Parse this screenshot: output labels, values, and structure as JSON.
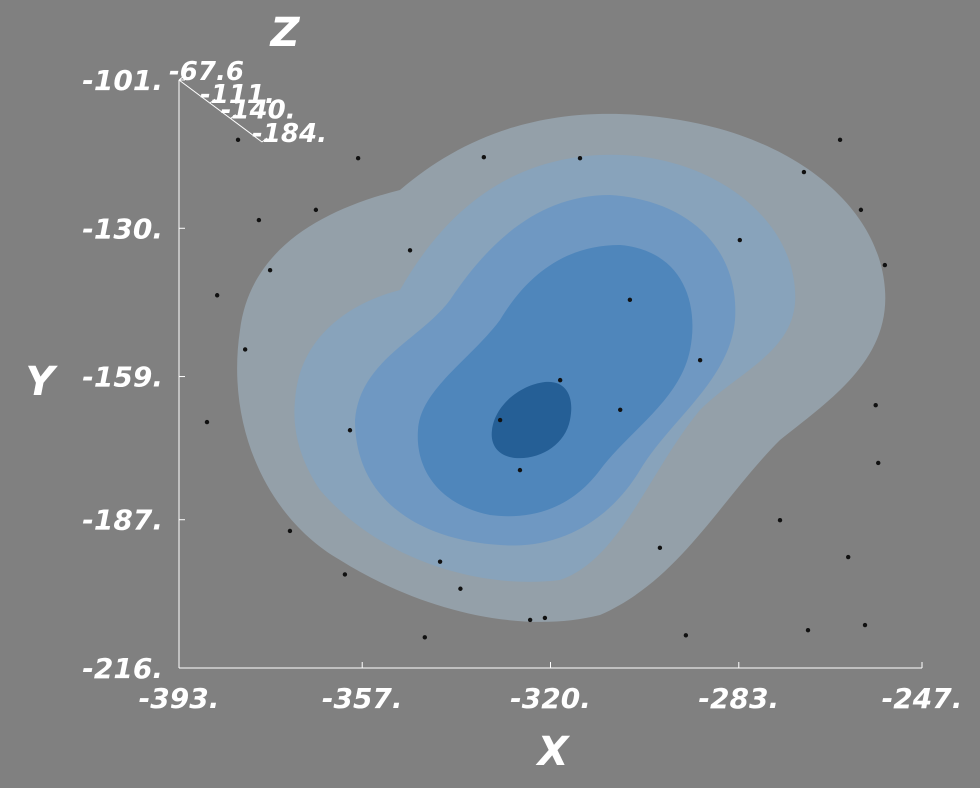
{
  "chart_data": {
    "type": "scatter",
    "x_label": "X",
    "y_label": "Y",
    "z_label": "Z",
    "xlim": [
      -393,
      -247
    ],
    "xticks": [
      {
        "value": -393,
        "label": "-393."
      },
      {
        "value": -357,
        "label": "-357."
      },
      {
        "value": -320,
        "label": "-320."
      },
      {
        "value": -283,
        "label": "-283."
      },
      {
        "value": -247,
        "label": "-247."
      }
    ],
    "ylim": [
      -216,
      -101
    ],
    "yticks": [
      {
        "value": -101,
        "label": "-101."
      },
      {
        "value": -130,
        "label": "-130."
      },
      {
        "value": -159,
        "label": "-159."
      },
      {
        "value": -187,
        "label": "-187."
      },
      {
        "value": -216,
        "label": "-216."
      }
    ],
    "zticks": [
      {
        "value": -67.6,
        "label": "-67.6"
      },
      {
        "value": -111,
        "label": "-111."
      },
      {
        "value": -140,
        "label": "-140."
      },
      {
        "value": -184,
        "label": "-184."
      }
    ],
    "color": "#111111",
    "x": [
      -385.5,
      -387.5,
      -381.4,
      -377.3,
      -366.1,
      -357.8,
      -344.7,
      -324.0,
      -321.1,
      -293.4,
      -269.4,
      -258.2,
      -261.5,
      -255.6,
      -256.1,
      -259.0,
      -263.1,
      -254.3,
      -270.2,
      -298.5,
      -314.2,
      -333.1,
      -329.9,
      -326.0,
      -318.1,
      -306.3,
      -290.6,
      -274.9,
      -359.4,
      -371.2,
      -360.4,
      -341.7,
      -337.7,
      -282.8,
      -304.4,
      -347.6,
      -375.1,
      -380.0
    ],
    "y": [
      -143.1,
      -167.9,
      -112.7,
      -128.4,
      -126.4,
      -116.3,
      -210.0,
      -206.6,
      -206.2,
      -209.6,
      -208.6,
      -207.6,
      -194.3,
      -175.9,
      -164.6,
      -126.4,
      -112.7,
      -137.2,
      -119.0,
      -192.5,
      -116.3,
      -116.1,
      -167.5,
      -177.3,
      -159.7,
      -165.5,
      -155.8,
      -187.1,
      -169.5,
      -189.2,
      -197.7,
      -195.2,
      -200.5,
      -132.3,
      -144.0,
      -134.3,
      -138.2,
      -153.7
    ]
  }
}
